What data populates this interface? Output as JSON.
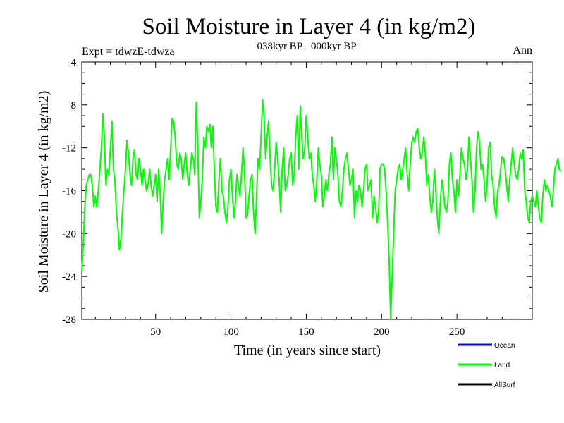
{
  "chart_data": {
    "type": "line",
    "title": "Soil Moisture in Layer 4 (in kg/m2)",
    "subtitle": "038kyr BP - 000kyr BP",
    "expt_label": "Expt = tdwzE-tdwza",
    "period_label": "Ann",
    "xlabel": "Time (in years since start)",
    "ylabel": "Soil Moisture in Layer 4 (in kg/m2)",
    "xlim": [
      1,
      300
    ],
    "ylim": [
      -28,
      -4
    ],
    "x_ticks": [
      50,
      100,
      150,
      200,
      250
    ],
    "y_ticks": [
      -4,
      -8,
      -12,
      -16,
      -20,
      -24,
      -28
    ],
    "grid": false,
    "legend_position": "bottom-right",
    "series": [
      {
        "name": "Ocean",
        "color": "#0000ff",
        "values": []
      },
      {
        "name": "Land",
        "color": "#00ff00",
        "x_start": 1,
        "x_step": 1,
        "values": [
          -23.5,
          -21,
          -17.5,
          -15.5,
          -15,
          -14.5,
          -14.5,
          -15.5,
          -17.5,
          -16.5,
          -17.5,
          -16,
          -14,
          -12,
          -8.8,
          -11,
          -15.5,
          -14,
          -14.5,
          -12,
          -9.5,
          -14,
          -15,
          -18,
          -19.5,
          -21.5,
          -20.5,
          -18,
          -16,
          -14,
          -11.3,
          -12.5,
          -14.5,
          -15.5,
          -13,
          -12.2,
          -14.5,
          -15,
          -13,
          -14,
          -15.5,
          -14,
          -15,
          -16,
          -15.5,
          -14,
          -15.5,
          -16.5,
          -15.5,
          -14.5,
          -17,
          -14,
          -16,
          -20,
          -17,
          -15,
          -14,
          -13,
          -15,
          -12,
          -9.3,
          -9.5,
          -11,
          -13.5,
          -14,
          -12.5,
          -13,
          -15,
          -13.5,
          -12.5,
          -14.5,
          -15.5,
          -14,
          -12.5,
          -13,
          -14.5,
          -7.7,
          -12,
          -18.5,
          -17,
          -15,
          -11,
          -12,
          -10,
          -10.5,
          -9.8,
          -12,
          -10,
          -14,
          -17.5,
          -18,
          -15,
          -13,
          -16,
          -16.5,
          -18,
          -19,
          -17.5,
          -15,
          -14,
          -16.5,
          -18.5,
          -17,
          -14.5,
          -15.5,
          -16.5,
          -14.5,
          -12,
          -14,
          -18.5,
          -18.3,
          -16.5,
          -15,
          -14.5,
          -18,
          -20,
          -16.5,
          -13,
          -14,
          -11,
          -7.5,
          -9,
          -13,
          -11,
          -9.5,
          -13,
          -15.5,
          -16,
          -14,
          -11.5,
          -13,
          -15,
          -18,
          -14,
          -12,
          -16,
          -15.5,
          -14.5,
          -13,
          -12.5,
          -15.5,
          -14.5,
          -11,
          -9,
          -14,
          -8.1,
          -11,
          -13,
          -12,
          -9,
          -11,
          -13,
          -12.5,
          -14.5,
          -15.5,
          -17,
          -15,
          -12,
          -13.5,
          -14.5,
          -17.5,
          -16.5,
          -15,
          -16,
          -14.5,
          -13.5,
          -11,
          -15,
          -12,
          -13,
          -14.5,
          -17,
          -17.5,
          -16,
          -14,
          -13,
          -12.5,
          -14,
          -15.5,
          -15,
          -14,
          -18.5,
          -16,
          -17,
          -15.5,
          -16,
          -17.5,
          -16,
          -14,
          -13.5,
          -16,
          -15.5,
          -15,
          -18.5,
          -16.5,
          -17.5,
          -19,
          -18,
          -14,
          -13.5,
          -13.5,
          -14,
          -16,
          -19,
          -22.5,
          -28,
          -24,
          -20,
          -16,
          -15,
          -14,
          -13.5,
          -15,
          -14,
          -13,
          -12,
          -14.5,
          -16,
          -13.5,
          -11.5,
          -11,
          -11.5,
          -10.5,
          -10.2,
          -12,
          -13,
          -12.5,
          -11,
          -12.5,
          -15.5,
          -14.5,
          -16.5,
          -18,
          -17,
          -14,
          -16,
          -18.5,
          -20,
          -17,
          -15,
          -16,
          -17.5,
          -18,
          -17,
          -13.5,
          -12.5,
          -15,
          -16,
          -18,
          -15,
          -16.5,
          -14.5,
          -12,
          -13,
          -13.5,
          -15,
          -14,
          -11,
          -13,
          -15,
          -18,
          -16,
          -12,
          -10.5,
          -11.5,
          -14,
          -13.5,
          -15,
          -17,
          -15.5,
          -12,
          -11.5,
          -14.5,
          -15.5,
          -17.5,
          -18.5,
          -16,
          -15.5,
          -14,
          -12.8,
          -13,
          -14,
          -15.5,
          -17,
          -15,
          -13.5,
          -12,
          -13.5,
          -14.5,
          -15,
          -14,
          -12.5,
          -13,
          -12.2,
          -16,
          -17,
          -18.5,
          -19,
          -17,
          -16.5,
          -17,
          -17.5,
          -16,
          -17.5,
          -18.5,
          -19,
          -16.5,
          -15,
          -16,
          -15.5,
          -16,
          -16.5,
          -17.5,
          -16,
          -14,
          -13.5,
          -13,
          -14,
          -14.2
        ]
      },
      {
        "name": "AllSurf",
        "color": "#000000",
        "values": []
      }
    ]
  }
}
